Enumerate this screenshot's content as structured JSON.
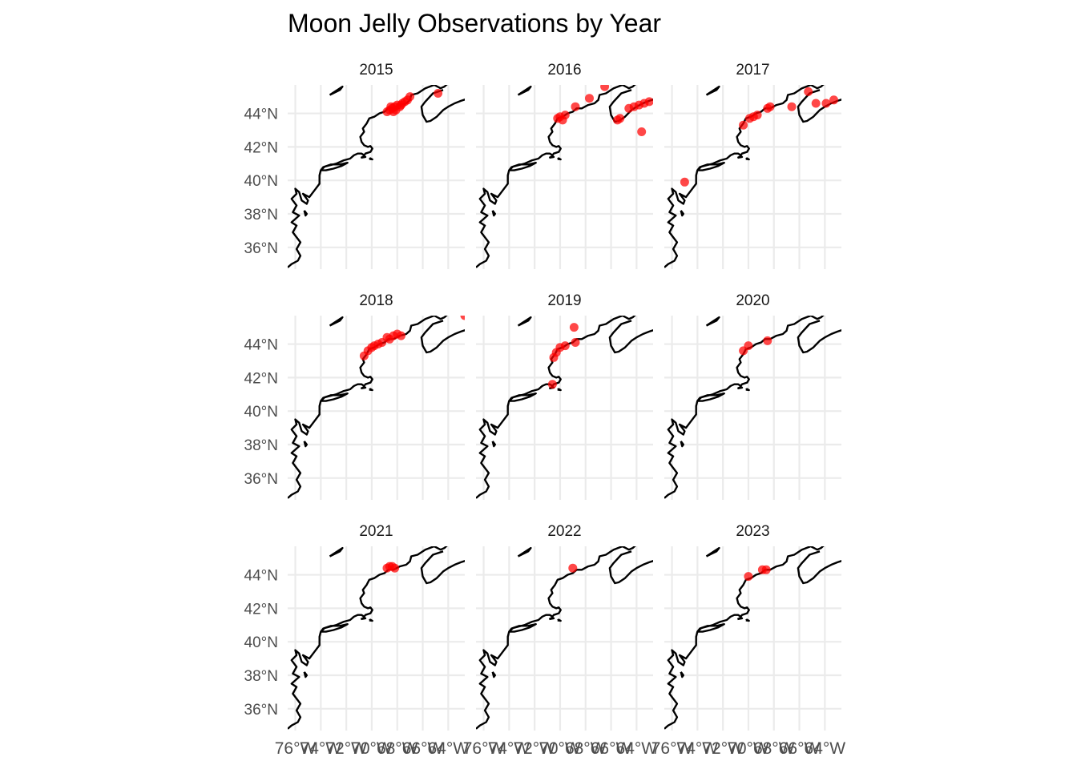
{
  "title": "Moon Jelly Observations by Year",
  "colors": {
    "background": "#ffffff",
    "grid": "#ebebeb",
    "coastline": "#000000",
    "points": "#ff0000",
    "axis_text": "#4d4d4d",
    "title_text": "#000000",
    "strip_text": "#1a1a1a"
  },
  "chart_data": {
    "type": "scatter",
    "geometry": "map facets (longitude / latitude) with coastline",
    "x_axis": {
      "ticks": [
        "76°W",
        "74°W",
        "72°W",
        "70°W",
        "68°W",
        "66°W",
        "64°W"
      ],
      "values": [
        -76,
        -74,
        -72,
        -70,
        -68,
        -66,
        -64
      ],
      "xlim": [
        -76.6,
        -62.7
      ]
    },
    "y_axis": {
      "ticks": [
        "36°N",
        "38°N",
        "40°N",
        "42°N",
        "44°N"
      ],
      "values": [
        36,
        38,
        40,
        42,
        44
      ],
      "ylim": [
        34.7,
        45.7
      ]
    },
    "grid": true,
    "legend": "none",
    "facets": [
      {
        "label": "2015",
        "points": [
          [
            -68.8,
            44.1
          ],
          [
            -68.6,
            44.2
          ],
          [
            -68.4,
            44.3
          ],
          [
            -68.2,
            44.4
          ],
          [
            -68.0,
            44.5
          ],
          [
            -67.8,
            44.4
          ],
          [
            -67.6,
            44.6
          ],
          [
            -67.4,
            44.7
          ],
          [
            -67.2,
            44.8
          ],
          [
            -67.0,
            45.0
          ],
          [
            -68.5,
            44.4
          ],
          [
            -68.1,
            44.2
          ],
          [
            -67.7,
            44.5
          ],
          [
            -68.3,
            44.1
          ],
          [
            -64.8,
            45.2
          ]
        ]
      },
      {
        "label": "2016",
        "points": [
          [
            -70.2,
            43.7
          ],
          [
            -70.0,
            43.8
          ],
          [
            -69.8,
            43.6
          ],
          [
            -69.6,
            43.9
          ],
          [
            -68.8,
            44.4
          ],
          [
            -67.7,
            44.9
          ],
          [
            -66.5,
            45.6
          ],
          [
            -65.5,
            43.6
          ],
          [
            -65.3,
            43.7
          ],
          [
            -64.6,
            44.3
          ],
          [
            -64.2,
            44.4
          ],
          [
            -63.8,
            44.5
          ],
          [
            -63.4,
            44.6
          ],
          [
            -63.0,
            44.7
          ],
          [
            -63.6,
            42.9
          ]
        ]
      },
      {
        "label": "2017",
        "points": [
          [
            -75.0,
            39.9
          ],
          [
            -70.4,
            43.3
          ],
          [
            -69.9,
            43.7
          ],
          [
            -69.6,
            43.8
          ],
          [
            -69.3,
            43.9
          ],
          [
            -68.5,
            44.3
          ],
          [
            -68.3,
            44.4
          ],
          [
            -66.6,
            44.4
          ],
          [
            -65.3,
            45.3
          ],
          [
            -64.7,
            44.6
          ],
          [
            -63.9,
            44.6
          ],
          [
            -63.3,
            44.8
          ]
        ]
      },
      {
        "label": "2018",
        "points": [
          [
            -70.6,
            43.3
          ],
          [
            -70.3,
            43.6
          ],
          [
            -70.0,
            43.8
          ],
          [
            -69.8,
            43.9
          ],
          [
            -69.5,
            44.0
          ],
          [
            -69.2,
            44.1
          ],
          [
            -68.8,
            44.4
          ],
          [
            -68.6,
            44.3
          ],
          [
            -68.3,
            44.5
          ],
          [
            -68.0,
            44.6
          ],
          [
            -67.7,
            44.5
          ],
          [
            -62.7,
            45.7
          ]
        ]
      },
      {
        "label": "2019",
        "points": [
          [
            -70.6,
            41.6
          ],
          [
            -70.5,
            43.2
          ],
          [
            -70.3,
            43.5
          ],
          [
            -70.0,
            43.8
          ],
          [
            -69.6,
            43.9
          ],
          [
            -68.9,
            45.0
          ],
          [
            -68.8,
            44.1
          ]
        ]
      },
      {
        "label": "2020",
        "points": [
          [
            -70.4,
            43.6
          ],
          [
            -70.0,
            43.9
          ],
          [
            -68.5,
            44.2
          ]
        ]
      },
      {
        "label": "2021",
        "points": [
          [
            -68.8,
            44.4
          ],
          [
            -68.6,
            44.5
          ],
          [
            -68.4,
            44.5
          ],
          [
            -68.2,
            44.4
          ]
        ]
      },
      {
        "label": "2022",
        "points": [
          [
            -69.0,
            44.4
          ]
        ]
      },
      {
        "label": "2023",
        "points": [
          [
            -70.0,
            43.9
          ],
          [
            -68.9,
            44.3
          ],
          [
            -68.6,
            44.3
          ]
        ]
      }
    ]
  }
}
